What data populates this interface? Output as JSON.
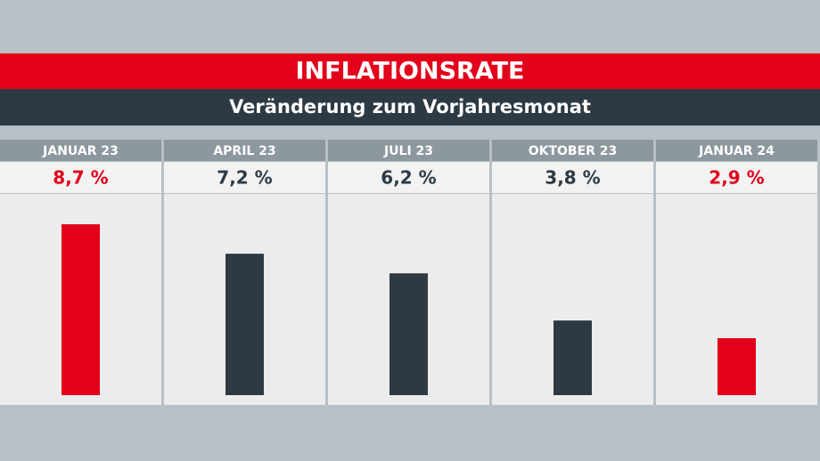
{
  "chart_data": {
    "type": "bar",
    "title": "INFLATIONSRATE",
    "subtitle": "Veränderung zum Vorjahresmonat",
    "categories": [
      "JANUAR 23",
      "APRIL 23",
      "JULI 23",
      "OKTOBER 23",
      "JANUAR 24"
    ],
    "values": [
      8.7,
      7.2,
      6.2,
      3.8,
      2.9
    ],
    "value_labels": [
      "8,7 %",
      "7,2 %",
      "6,2 %",
      "3,8 %",
      "2,9 %"
    ],
    "colors": [
      "#e2001a",
      "#2d3a44",
      "#2d3a44",
      "#2d3a44",
      "#e2001a"
    ]
  }
}
